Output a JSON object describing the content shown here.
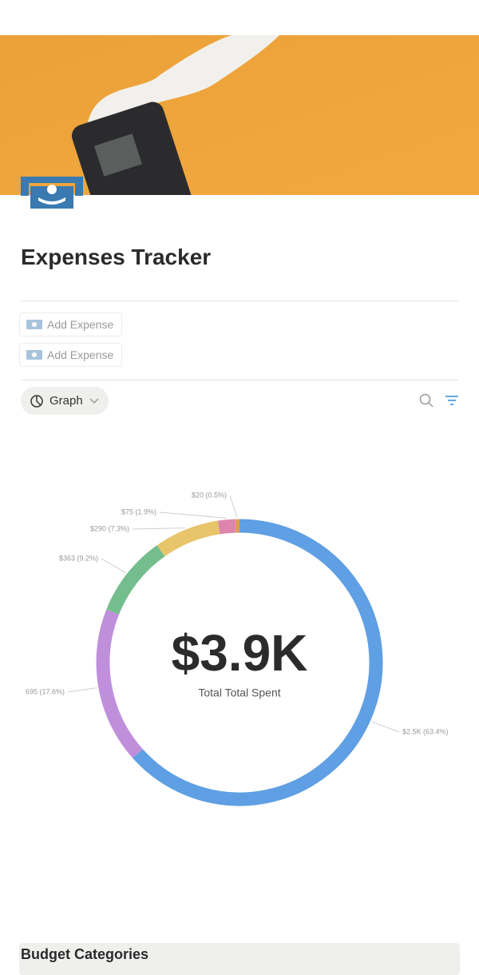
{
  "page_title": "Expenses Tracker",
  "buttons": [
    "Add Expense",
    "Add Expense"
  ],
  "view_label": "Graph",
  "chart_data": {
    "type": "pie",
    "donut": true,
    "values": [
      2500,
      695,
      363,
      290,
      75,
      20
    ],
    "value_labels": [
      "$2.5K (63.4%)",
      "695 (17.6%)",
      "$363 (9.2%)",
      "$290 (7.3%)",
      "$75 (1.9%)",
      "$20 (0.5%)"
    ],
    "colors": [
      "#5f9fe3",
      "#bf8fdc",
      "#74bd8d",
      "#e8c46a",
      "#dd85ad",
      "#e39a5b"
    ],
    "center_label": "$3.9K",
    "center_caption": "Total Total Spent"
  },
  "section_title": "Budget Categories"
}
